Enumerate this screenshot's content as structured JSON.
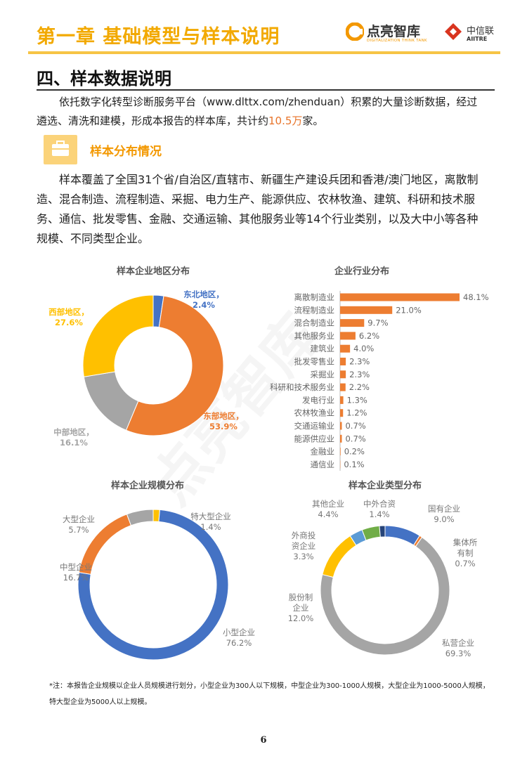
{
  "header": {
    "chapter": "第一章  基础模型与样本说明",
    "logo1": "点亮智库",
    "logo1_sub": "DIGITALIZATION THINK TANK",
    "logo2": "中信联",
    "logo2_sub": "AIITRE"
  },
  "section": {
    "title": "四、样本数据说明",
    "paragraph1": [
      "依托数字化转型诊断服务平台（www.dlttx.com/zhenduan）积累的大量诊断数据，经过遴选、清洗和建模，形成本报告的样本库，共计约",
      "10.5万",
      "家。"
    ],
    "subsection": "样本分布情况",
    "paragraph2": "样本覆盖了全国31个省/自治区/直辖市、新疆生产建设兵团和香港/澳门地区，离散制造、混合制造、流程制造、采掘、电力生产、能源供应、农林牧渔、建筑、科研和技术服务、通信、批发零售、金融、交通运输、其他服务业等14个行业类别，以及大中小等各种规模、不同类型企业。"
  },
  "watermark": "点亮智库",
  "chart_data": [
    {
      "type": "donut",
      "title": "样本企业地区分布",
      "categories": [
        "东北地区，",
        "东部地区，",
        "中部地区，",
        "西部地区，"
      ],
      "values": [
        2.4,
        53.9,
        16.1,
        27.6
      ],
      "value_labels": [
        "2.4%",
        "53.9%",
        "16.1%",
        "27.6%"
      ],
      "colors": [
        "#4472c4",
        "#ed7d31",
        "#a5a5a5",
        "#ffc000"
      ]
    },
    {
      "type": "bar",
      "orientation": "horizontal",
      "title": "企业行业分布",
      "categories": [
        "离散制造业",
        "流程制造业",
        "混合制造业",
        "其他服务业",
        "建筑业",
        "批发零售业",
        "采掘业",
        "科研和技术服务业",
        "发电行业",
        "农林牧渔业",
        "交通运输业",
        "能源供应业",
        "金融业",
        "通信业"
      ],
      "values": [
        48.1,
        21.0,
        9.7,
        6.2,
        4.0,
        2.3,
        2.3,
        2.2,
        1.3,
        1.2,
        0.7,
        0.7,
        0.2,
        0.1
      ],
      "value_labels": [
        "48.1%",
        "21.0%",
        "9.7%",
        "6.2%",
        "4.0%",
        "2.3%",
        "2.3%",
        "2.2%",
        "1.3%",
        "1.2%",
        "0.7%",
        "0.7%",
        "0.2%",
        "0.1%"
      ],
      "color": "#ed7d31"
    },
    {
      "type": "donut",
      "title": "样本企业规模分布",
      "categories": [
        "特大型企业",
        "小型企业",
        "中型企业",
        "大型企业"
      ],
      "values": [
        1.4,
        76.2,
        16.7,
        5.7
      ],
      "value_labels": [
        "1.4%",
        "76.2%",
        "16.7%",
        "5.7%"
      ],
      "colors": [
        "#ffc000",
        "#4472c4",
        "#ed7d31",
        "#a5a5a5"
      ]
    },
    {
      "type": "donut",
      "title": "样本企业类型分布",
      "categories": [
        "国有企业",
        "集体所有制",
        "私营企业",
        "股份制企业",
        "外商投资企业",
        "其他企业",
        "中外合资"
      ],
      "values": [
        9.0,
        0.7,
        69.3,
        12.0,
        3.3,
        4.4,
        1.4
      ],
      "value_labels": [
        "9.0%",
        "0.7%",
        "69.3%",
        "12.0%",
        "3.3%",
        "4.4%",
        "1.4%"
      ],
      "colors": [
        "#4472c4",
        "#ed7d31",
        "#a5a5a5",
        "#ffc000",
        "#5b9bd5",
        "#70ad47",
        "#264478"
      ]
    }
  ],
  "footnote": "*注：本报告企业规模以企业人员规模进行划分，小型企业为300人以下规模，中型企业为300-1000人规模，大型企业为1000-5000人规模，特大型企业为5000人以上规模。",
  "page_number": "6"
}
